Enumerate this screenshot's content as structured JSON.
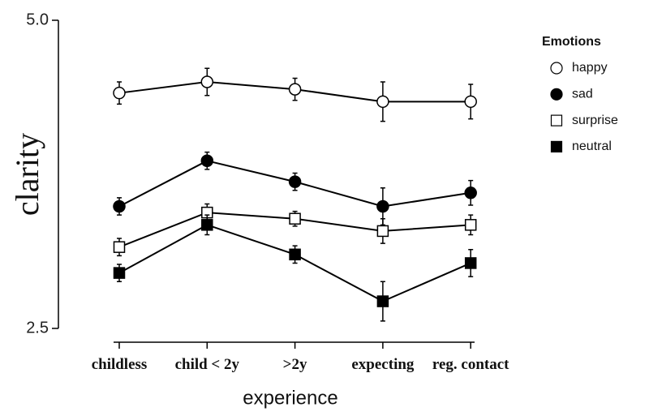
{
  "chart_data": {
    "type": "line",
    "x_label": "experience",
    "y_label": "clarity",
    "legend_title": "Emotions",
    "legend_position": "upper right",
    "categories": [
      "childless",
      "child < 2y",
      ">2y",
      "expecting",
      "reg. contact"
    ],
    "ylim": [
      2.5,
      5.0
    ],
    "yticks": [
      {
        "value": 5.0,
        "label": "5.0"
      },
      {
        "value": 2.5,
        "label": "2.5"
      }
    ],
    "series": [
      {
        "name": "happy",
        "color": "#ffffff",
        "marker": "circle",
        "values": [
          4.41,
          4.5,
          4.44,
          4.34,
          4.34
        ],
        "errors": [
          0.09,
          0.11,
          0.09,
          0.16,
          0.14
        ]
      },
      {
        "name": "sad",
        "color": "#000000",
        "marker": "circle",
        "values": [
          3.49,
          3.86,
          3.69,
          3.49,
          3.6
        ],
        "errors": [
          0.07,
          0.07,
          0.07,
          0.15,
          0.1
        ]
      },
      {
        "name": "surprise",
        "color": "#ffffff",
        "marker": "square",
        "values": [
          3.16,
          3.44,
          3.39,
          3.29,
          3.34
        ],
        "errors": [
          0.07,
          0.07,
          0.06,
          0.1,
          0.08
        ]
      },
      {
        "name": "neutral",
        "color": "#000000",
        "marker": "square",
        "values": [
          2.95,
          3.34,
          3.1,
          2.72,
          3.03
        ],
        "errors": [
          0.07,
          0.08,
          0.07,
          0.16,
          0.11
        ]
      }
    ]
  }
}
